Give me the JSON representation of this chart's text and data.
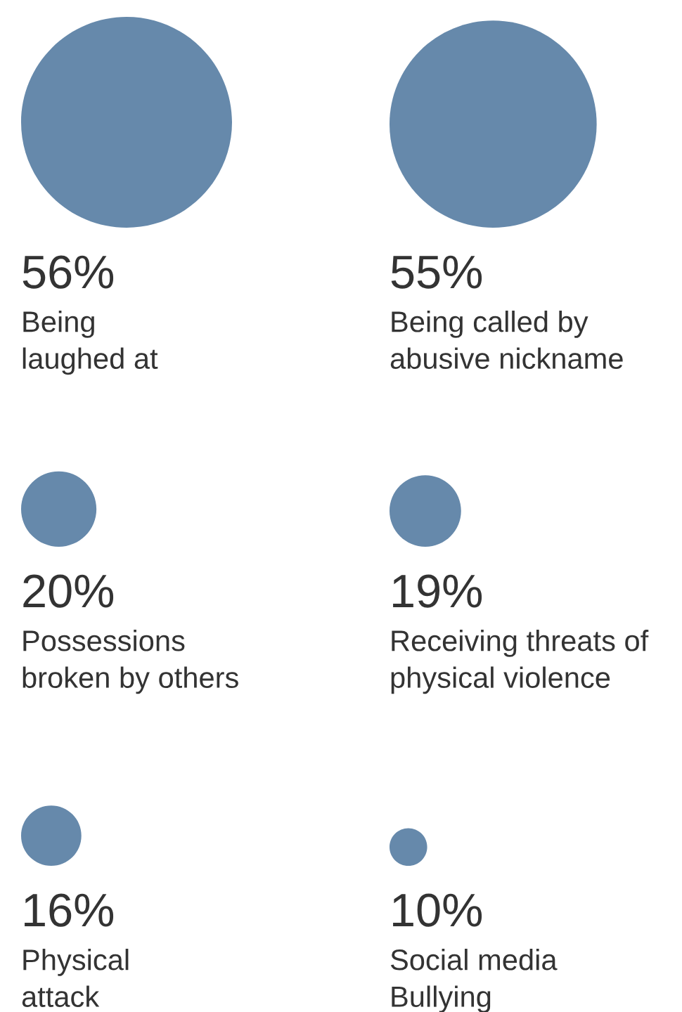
{
  "chart_data": {
    "type": "other",
    "categories": [
      "Being\nlaughed at",
      "Being called by\nabusive nickname",
      "Possessions\nbroken by others",
      "Receiving threats of\nphysical violence",
      "Physical\nattack",
      "Social media\nBullying"
    ],
    "values": [
      56,
      55,
      20,
      19,
      16,
      10
    ],
    "value_labels": [
      "56%",
      "55%",
      "20%",
      "19%",
      "16%",
      "10%"
    ],
    "color": "#6689ab"
  }
}
